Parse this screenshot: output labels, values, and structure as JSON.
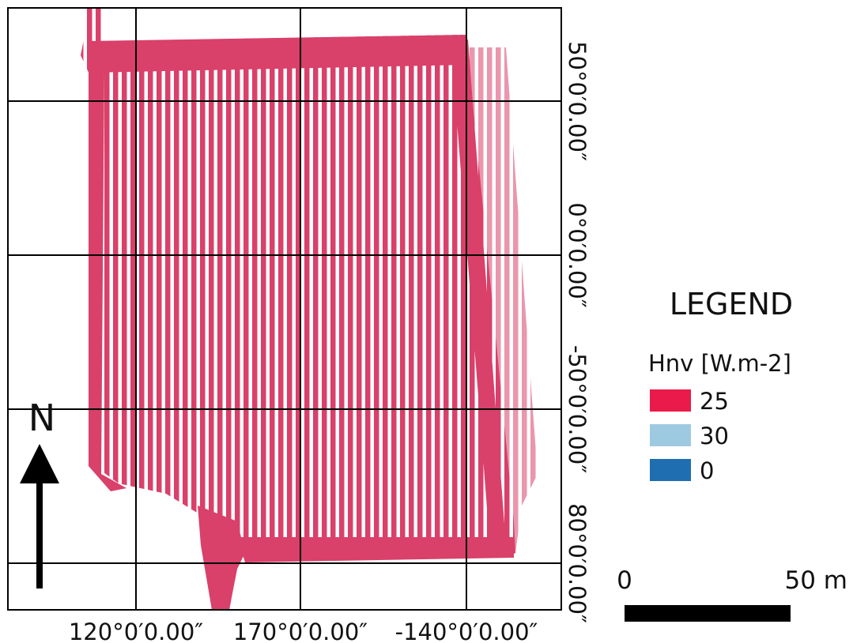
{
  "map": {
    "x_labels": [
      "120°0′0.00″",
      "170°0′0.00″",
      "-140°0′0.00″"
    ],
    "y_labels": [
      "50°0′0.00″",
      "0°0′0.00″",
      "-50°0′0.00″",
      "80°0′0.00″"
    ],
    "north": "N",
    "legend": {
      "title": "LEGEND",
      "subtitle": "Hnv [W.m-2]",
      "items": [
        {
          "label": "25",
          "color": "#ea1a4b"
        },
        {
          "label": "30",
          "color": "#9ecae1"
        },
        {
          "label": "0",
          "color": "#1f6eb2"
        }
      ]
    },
    "scale_bar": {
      "start": "0",
      "end": "50 m"
    }
  }
}
